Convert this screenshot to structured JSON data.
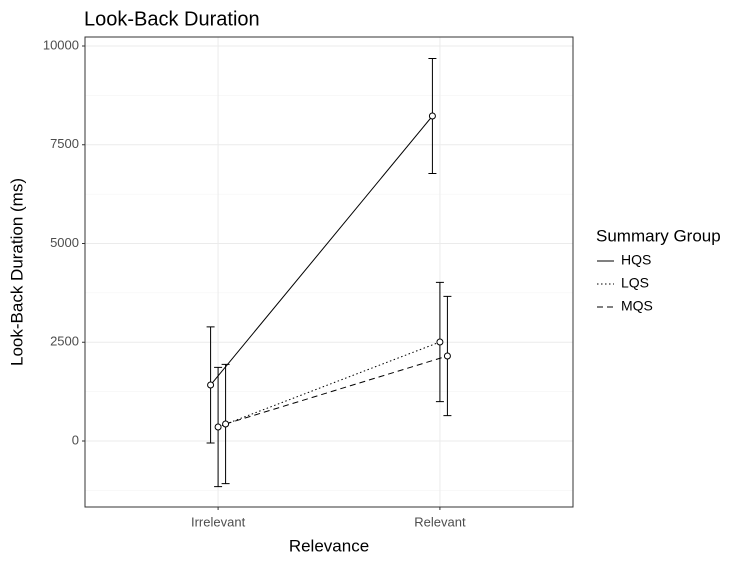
{
  "chart_data": {
    "type": "line",
    "title": "Look-Back Duration",
    "x_label": "Relevance",
    "y_label": "Look-Back Duration (ms)",
    "legend_title": "Summary Group",
    "legend_position": "right",
    "categories": [
      "Irrelevant",
      "Relevant"
    ],
    "series": [
      {
        "name": "HQS",
        "color": "#000000",
        "linestyle": "solid",
        "values": [
          1418,
          8228
        ],
        "errors": [
          1470,
          1455
        ]
      },
      {
        "name": "LQS",
        "color": "#000000",
        "linestyle": "dotted",
        "values": [
          354,
          2506
        ],
        "errors": [
          1510,
          1510
        ]
      },
      {
        "name": "MQS",
        "color": "#000000",
        "linestyle": "dashed",
        "values": [
          430,
          2152
        ],
        "errors": [
          1510,
          1510
        ]
      }
    ],
    "ylim": [
      -1671,
      10228
    ],
    "yticks": [
      0,
      2500,
      5000,
      7500,
      10000
    ],
    "minor_yticks": [
      -1250,
      1250,
      3750,
      6250,
      8750
    ],
    "grid": true
  }
}
